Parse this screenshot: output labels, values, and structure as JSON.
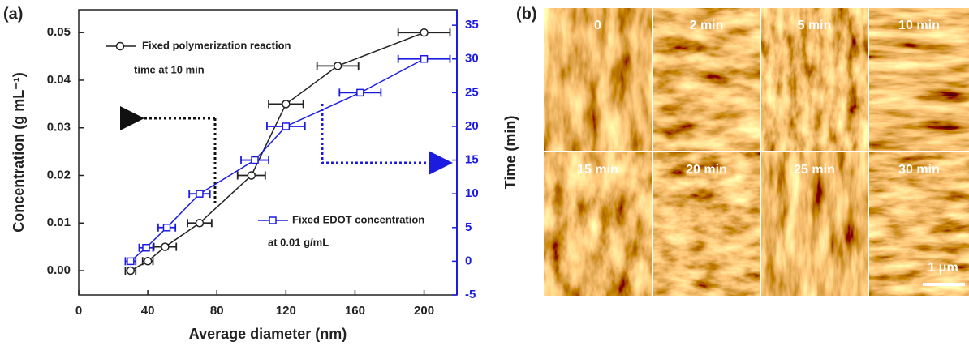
{
  "chart_data": {
    "type": "line",
    "panel_label": "(a)",
    "x_label": "Average diameter (nm)",
    "y_label": "Concentration (g mL⁻¹)",
    "y2_label": "Time (min)",
    "xlim": [
      0,
      219
    ],
    "xticks": [
      0,
      40,
      80,
      120,
      160,
      200
    ],
    "ylim": [
      -0.0051,
      0.0548
    ],
    "yticks": [
      {
        "value": 0,
        "label": "0.00"
      },
      {
        "value": 0.01,
        "label": "0.01"
      },
      {
        "value": 0.02,
        "label": "0.02"
      },
      {
        "value": 0.03,
        "label": "0.03"
      },
      {
        "value": 0.04,
        "label": "0.04"
      },
      {
        "value": 0.05,
        "label": "0.05"
      }
    ],
    "y2lim": [
      -5,
      37.3
    ],
    "y2ticks": [
      -5,
      0,
      5,
      10,
      15,
      20,
      25,
      30,
      35
    ],
    "series": [
      {
        "name": "Fixed polymerization  reaction",
        "note": "time at 10 min",
        "color": "#222222",
        "marker": "circle",
        "x": [
          30,
          40,
          50,
          70,
          100,
          120,
          150,
          200
        ],
        "xerr": [
          3,
          3,
          6.5,
          7,
          8,
          10,
          12,
          15
        ],
        "values": [
          0,
          0.002,
          0.005,
          0.01,
          0.02,
          0.035,
          0.043,
          0.05
        ]
      },
      {
        "name": "Fixed EDOT  concentration",
        "note": "at 0.01 g/mL",
        "color": "#1c1ce0",
        "marker": "square",
        "axis": "y2",
        "x": [
          30,
          39,
          51,
          70,
          102,
          120,
          163,
          200
        ],
        "xerr": [
          3,
          4,
          5,
          6,
          8,
          11,
          12,
          15
        ],
        "values": [
          0,
          2,
          5,
          10,
          15,
          20,
          25,
          30
        ]
      }
    ]
  },
  "panel_b": {
    "label": "(b)",
    "tiles": [
      "0",
      "2 min",
      "5 min",
      "10 min",
      "15 min",
      "20 min",
      "25 min",
      "30 min"
    ],
    "scale_bar": "1 μm"
  }
}
